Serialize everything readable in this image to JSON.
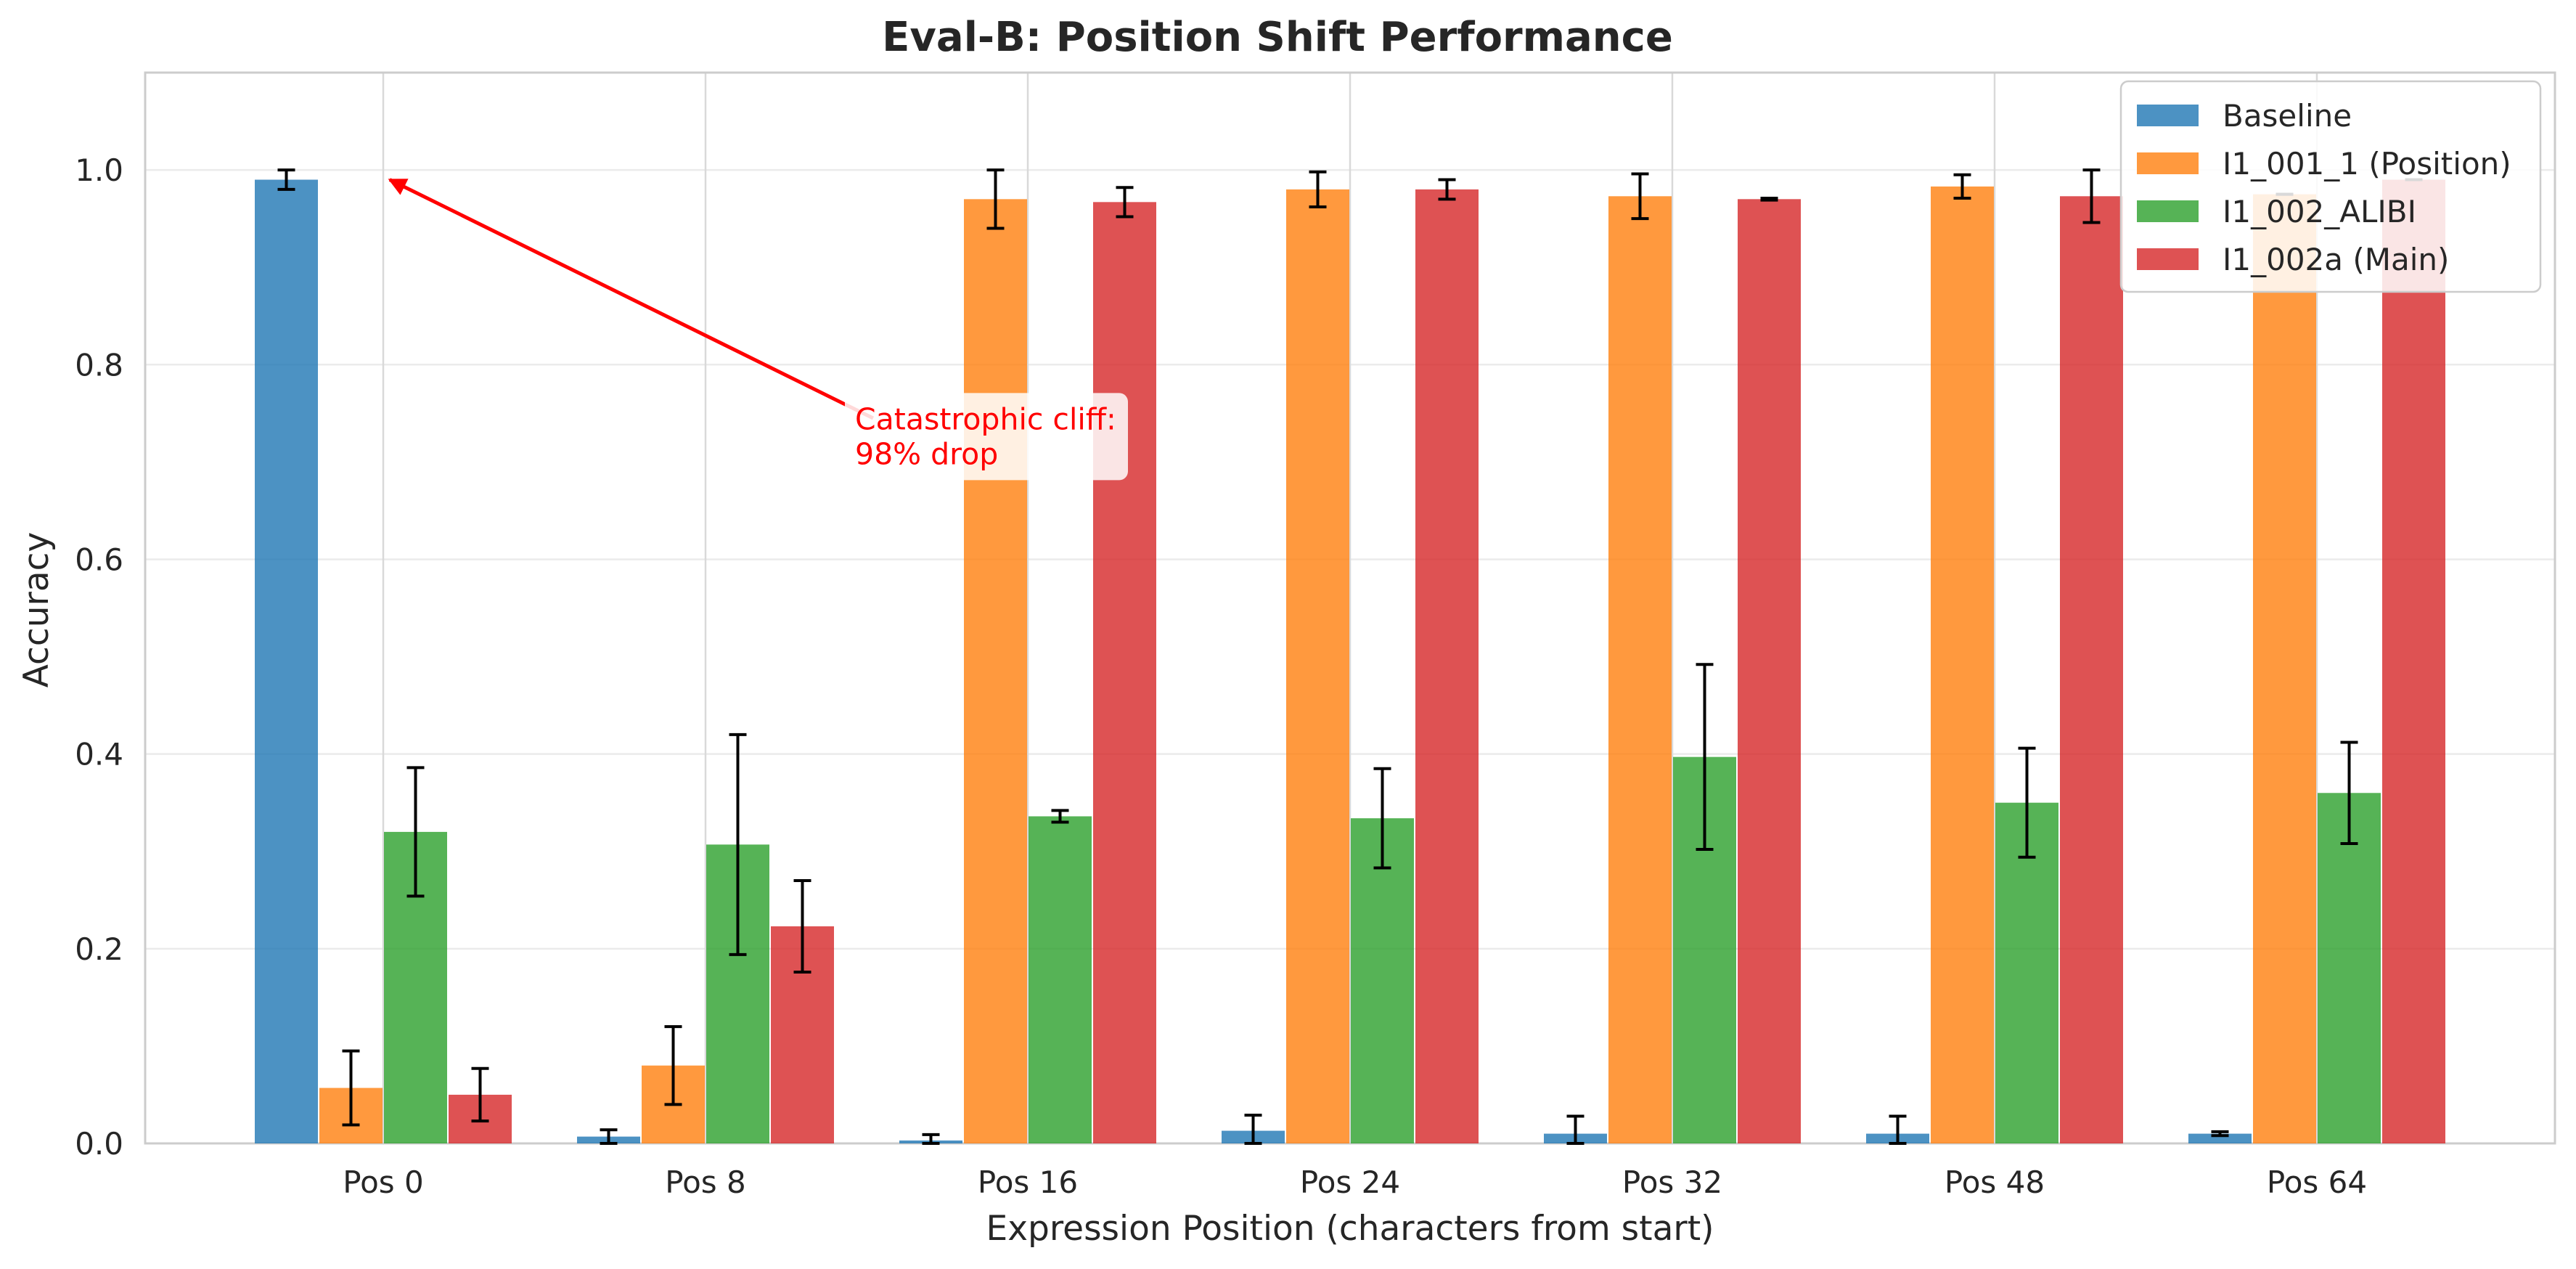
{
  "chart_data": {
    "type": "bar",
    "title": "Eval-B: Position Shift Performance",
    "xlabel": "Expression Position (characters from start)",
    "ylabel": "Accuracy",
    "ylim": [
      0,
      1.1
    ],
    "yticks": [
      0.0,
      0.2,
      0.4,
      0.6,
      0.8,
      1.0
    ],
    "ytick_labels": [
      "0.0",
      "0.2",
      "0.4",
      "0.6",
      "0.8",
      "1.0"
    ],
    "grid": true,
    "legend_position": "top-right",
    "categories": [
      "Pos 0",
      "Pos 8",
      "Pos 16",
      "Pos 24",
      "Pos 32",
      "Pos 48",
      "Pos 64"
    ],
    "series": [
      {
        "name": "Baseline",
        "color": "#1f77b4",
        "values": [
          0.99,
          0.007,
          0.003,
          0.013,
          0.01,
          0.01,
          0.01
        ],
        "errors": [
          0.01,
          0.007,
          0.006,
          0.016,
          0.018,
          0.018,
          0.002
        ]
      },
      {
        "name": "I1_001_1 (Position)",
        "color": "#ff7f0e",
        "values": [
          0.057,
          0.08,
          0.97,
          0.98,
          0.973,
          0.983,
          0.975
        ],
        "errors": [
          0.038,
          0.04,
          0.03,
          0.018,
          0.023,
          0.012,
          0.0
        ]
      },
      {
        "name": "I1_002_ALIBI",
        "color": "#2ca02c",
        "values": [
          0.32,
          0.307,
          0.336,
          0.334,
          0.397,
          0.35,
          0.36
        ],
        "errors": [
          0.066,
          0.113,
          0.006,
          0.051,
          0.095,
          0.056,
          0.052
        ]
      },
      {
        "name": "I1_002a (Main)",
        "color": "#d62728",
        "values": [
          0.05,
          0.223,
          0.967,
          0.98,
          0.97,
          0.973,
          0.99
        ],
        "errors": [
          0.027,
          0.047,
          0.015,
          0.01,
          0.001,
          0.027,
          0.0
        ]
      }
    ],
    "annotations": [
      {
        "lines": [
          "Catastrophic cliff:",
          "98% drop"
        ],
        "color": "#ff0000",
        "arrow_from": {
          "category": 1.52,
          "y": 0.745
        },
        "arrow_to": {
          "category": 0.02,
          "y": 0.99
        },
        "text_at": {
          "category": 1.5,
          "y": 0.7
        }
      }
    ]
  }
}
